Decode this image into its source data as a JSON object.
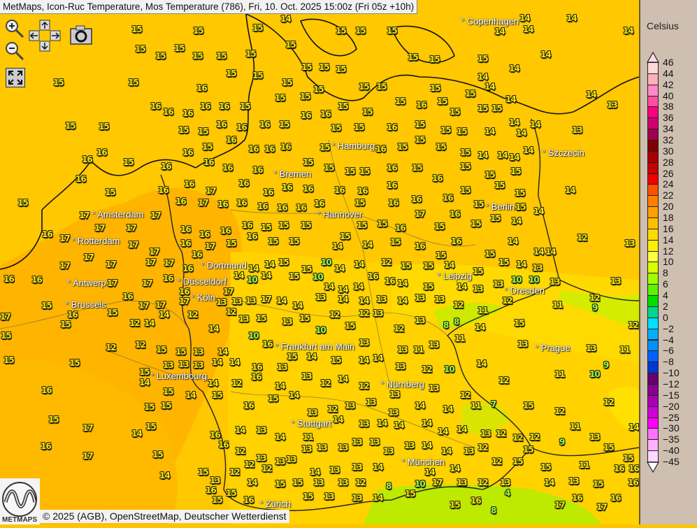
{
  "title": "MetMaps, Icon-Ruc Temperature, Mos Temperature (786), Fri, 10. Oct. 2025 15:00z (Fri 05z +10h)",
  "controls": {
    "zoom_in": "zoom-in-icon",
    "zoom_out": "zoom-out-icon",
    "pan": "pan-arrows-icon",
    "screenshot": "camera-icon",
    "fullscreen": "fullscreen-icon"
  },
  "cities": [
    "Copenhagen",
    "Hamburg",
    "Bremen",
    "Szczecin",
    "Berlin",
    "Amsterdam",
    "Hannover",
    "Rotterdam",
    "Antwerp",
    "Dortmund",
    "Düsseldorf",
    "Leipzig",
    "Dresden",
    "Köln",
    "Brussels",
    "Frankfurt am Main",
    "Prague",
    "Luxembourg",
    "Nürnberg",
    "Stuttgart",
    "München",
    "Zürich"
  ],
  "legend": {
    "unit": "Celsius",
    "labels": [
      "46",
      "44",
      "42",
      "40",
      "38",
      "36",
      "34",
      "32",
      "30",
      "28",
      "26",
      "24",
      "22",
      "20",
      "18",
      "16",
      "14",
      "12",
      "10",
      "8",
      "6",
      "4",
      "2",
      "0",
      "−2",
      "−4",
      "−6",
      "−8",
      "−10",
      "−12",
      "−15",
      "−20",
      "−25",
      "−30",
      "−35",
      "−40",
      "−45"
    ],
    "colors": [
      "#ffd8dc",
      "#ffb0b8",
      "#ff88c8",
      "#ff50a0",
      "#ff0080",
      "#d00070",
      "#a00050",
      "#800000",
      "#a80000",
      "#c80000",
      "#f00000",
      "#ff5000",
      "#ff8000",
      "#ffa000",
      "#ffc000",
      "#ffdc00",
      "#fff000",
      "#ffff40",
      "#d8ff00",
      "#a0ff00",
      "#60f000",
      "#00e000",
      "#00d890",
      "#00e0ff",
      "#00b0ff",
      "#0090ff",
      "#0060ff",
      "#0038d0",
      "#680070",
      "#880090",
      "#a800b0",
      "#d000d8",
      "#ff00ff",
      "#ff70ff",
      "#ffb0ff",
      "#ffd8ff"
    ],
    "top_arrow_color": "#ffd8e8",
    "bottom_arrow_color": "#ffffff"
  },
  "map_colors": {
    "sea": "#ffc800",
    "land_warm": "#ffb000",
    "land_cool": "#ffd400",
    "cold": "#a8f000",
    "border": "#111111"
  },
  "stations": [
    15,
    15,
    15,
    14,
    15,
    15,
    15,
    14,
    14,
    14,
    14,
    14,
    15,
    15,
    15,
    15,
    15,
    15,
    15,
    15,
    15,
    15,
    15,
    15,
    15,
    14,
    14,
    15,
    15,
    16,
    15,
    15,
    15,
    15,
    15,
    15,
    15,
    14,
    15,
    14,
    14,
    14,
    13,
    16,
    16,
    16,
    16,
    16,
    15,
    15,
    15,
    16,
    15,
    15,
    15,
    16,
    15,
    15,
    15,
    15,
    14,
    14,
    15,
    15,
    15,
    15,
    16,
    16,
    16,
    15,
    16,
    15,
    15,
    16,
    15,
    15,
    15,
    14,
    14,
    13,
    16,
    15,
    16,
    15,
    16,
    16,
    16,
    16,
    15,
    16,
    15,
    15,
    15,
    15,
    14,
    14,
    14,
    14,
    16,
    16,
    16,
    16,
    16,
    15,
    15,
    15,
    15,
    16,
    15,
    16,
    15,
    15,
    15,
    16,
    15,
    16,
    16,
    17,
    16,
    16,
    16,
    16,
    16,
    16,
    16,
    16,
    16,
    15,
    15,
    15,
    14,
    15,
    16,
    17,
    16,
    16,
    16,
    16,
    16,
    15,
    16,
    17,
    16,
    15,
    15,
    17,
    16,
    17,
    17,
    17,
    17,
    16,
    16,
    16,
    16,
    15,
    15,
    15,
    16,
    15,
    15,
    16,
    15,
    15,
    15,
    14,
    14,
    17,
    17,
    17,
    17,
    16,
    17,
    15,
    16,
    15,
    15,
    14,
    15,
    14,
    15,
    16,
    15,
    16,
    15,
    14,
    14,
    12,
    13,
    16,
    16,
    17,
    17,
    17,
    16,
    16,
    14,
    14,
    14,
    15,
    15,
    10,
    14,
    14,
    12,
    15,
    15,
    14,
    15,
    15,
    14,
    13,
    14,
    17,
    16,
    17,
    16,
    16,
    17,
    10,
    14,
    15,
    10,
    14,
    14,
    14,
    16,
    16,
    14,
    15,
    14,
    13,
    13,
    10,
    10,
    13,
    12,
    13,
    17,
    15,
    16,
    17,
    17,
    17,
    13,
    13,
    13,
    17,
    14,
    14,
    13,
    14,
    14,
    13,
    14,
    13,
    13,
    12,
    11,
    12,
    11,
    9,
    15,
    15,
    12,
    14,
    14,
    12,
    14,
    12,
    13,
    15,
    13,
    15,
    10,
    12,
    15,
    12,
    13,
    12,
    13,
    8,
    8,
    14,
    15,
    12,
    15,
    12,
    12,
    15,
    15,
    13,
    14,
    10,
    16,
    15,
    13,
    13,
    11,
    13,
    11,
    13,
    13,
    11,
    15,
    15,
    15,
    13,
    13,
    13,
    14,
    14,
    16,
    13,
    14,
    15,
    14,
    14,
    13,
    12,
    10,
    14,
    9,
    11,
    10,
    16,
    14,
    15,
    14,
    14,
    12,
    16,
    14,
    13,
    12,
    14,
    12,
    13,
    13,
    12,
    12,
    15,
    17,
    15,
    15,
    15,
    16,
    15,
    14,
    13,
    12,
    13,
    13,
    13,
    14,
    14,
    11,
    7,
    15,
    12,
    12,
    16,
    14,
    15,
    16,
    14,
    13,
    14,
    11,
    14,
    13,
    14,
    14,
    14,
    14,
    14,
    13,
    12,
    12,
    12,
    11,
    13,
    14,
    17,
    15,
    16,
    12,
    13,
    13,
    13,
    13,
    13,
    13,
    13,
    13,
    13,
    14,
    14,
    13,
    12,
    15,
    9,
    15,
    15,
    15,
    13,
    12,
    12,
    12,
    13,
    14,
    13,
    13,
    14,
    14,
    14,
    12,
    15,
    15,
    11,
    16,
    16,
    14,
    16,
    15,
    14,
    15,
    15,
    13,
    13,
    12,
    8,
    10,
    17,
    13,
    12,
    13,
    14,
    13,
    15,
    16,
    15,
    16,
    15,
    13,
    13,
    14,
    15,
    15,
    16,
    8,
    4,
    17,
    16,
    17,
    16
  ]
}
